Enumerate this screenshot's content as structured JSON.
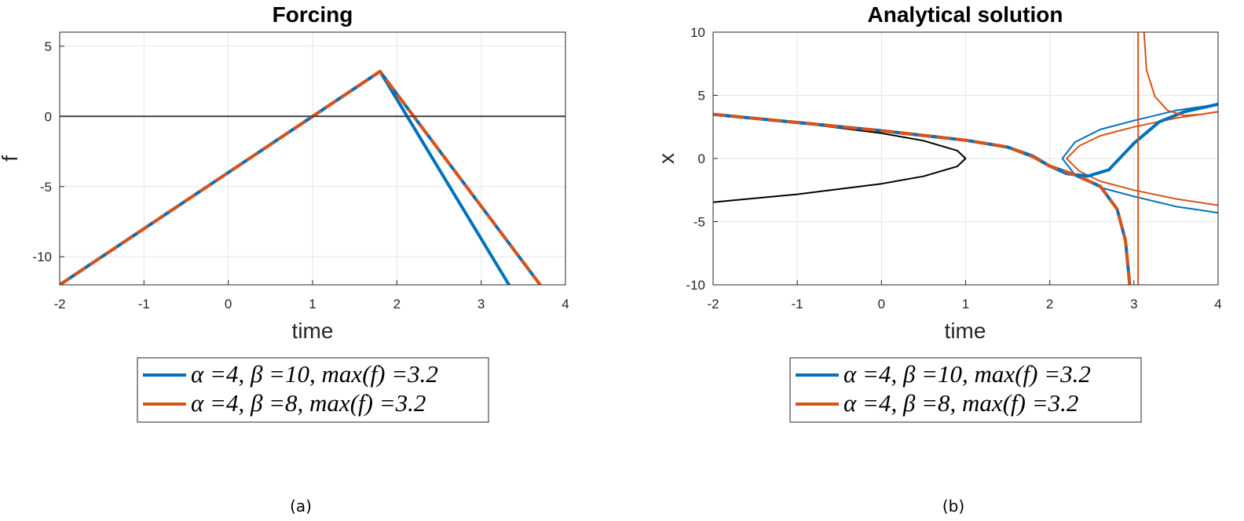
{
  "chart_data": [
    {
      "type": "line",
      "title": "Forcing",
      "xlabel": "time",
      "ylabel": "f",
      "xlim": [
        -2,
        4
      ],
      "ylim": [
        -12,
        6
      ],
      "xticks": [
        "-2",
        "-1",
        "0",
        "1",
        "2",
        "3",
        "4"
      ],
      "yticks": [
        "5",
        "0",
        "-5",
        "-10"
      ],
      "grid": true,
      "caption": "(a)",
      "legend_position": "bottom-outside",
      "legend": [
        "α =4, β =10, max(f) =3.2",
        "α =4, β =8, max(f) =3.2"
      ],
      "series": [
        {
          "name": "α =4, β =10, max(f) =3.2",
          "color": "#0072BD",
          "x": [
            -2,
            1.8,
            3.33
          ],
          "y": [
            -12,
            3.2,
            -12
          ]
        },
        {
          "name": "α =4, β =8, max(f) =3.2",
          "color": "#D95319",
          "dashed_over_blue": true,
          "x": [
            -2,
            1.8,
            3.7
          ],
          "y": [
            -12,
            3.2,
            -12
          ]
        },
        {
          "name": "",
          "color": "#404040",
          "x": [
            -2,
            4
          ],
          "y": [
            0,
            0
          ]
        }
      ]
    },
    {
      "type": "line",
      "title": "Analytical solution",
      "xlabel": "time",
      "ylabel": "x",
      "xlim": [
        -2,
        4
      ],
      "ylim": [
        -10,
        10
      ],
      "xticks": [
        "-2",
        "-1",
        "0",
        "1",
        "2",
        "3",
        "4"
      ],
      "yticks": [
        "10",
        "5",
        "0",
        "-5",
        "-10"
      ],
      "grid": true,
      "caption": "(b)",
      "legend_position": "bottom-outside",
      "legend": [
        "α =4, β =10, max(f) =3.2",
        "α =4, β =8, max(f) =3.2"
      ],
      "series": [
        {
          "name": "",
          "color": "#000000",
          "x": [
            -2,
            -1,
            0,
            0.5,
            0.9,
            1,
            0.9,
            0.5,
            0,
            -1,
            -2
          ],
          "y": [
            3.46,
            2.83,
            2,
            1.41,
            0.63,
            0,
            -0.63,
            -1.41,
            -2,
            -2.83,
            -3.46
          ]
        },
        {
          "name": "",
          "color": "#0072BD",
          "x": [
            4,
            3.5,
            3,
            2.6,
            2.3,
            2.15,
            2.3,
            2.6,
            3,
            3.5,
            4
          ],
          "y": [
            4.3,
            3.8,
            3.0,
            2.3,
            1.3,
            0,
            -1.3,
            -2.3,
            -3.0,
            -3.8,
            -4.3
          ]
        },
        {
          "name": "",
          "color": "#D95319",
          "x": [
            4,
            3.5,
            3,
            2.6,
            2.35,
            2.2,
            2.35,
            2.6,
            3,
            3.5,
            4
          ],
          "y": [
            3.7,
            3.2,
            2.5,
            1.8,
            1.0,
            0,
            -1.0,
            -1.8,
            -2.5,
            -3.2,
            -3.7
          ]
        },
        {
          "name": "α =4, β =10, max(f) =3.2",
          "color": "#0072BD",
          "x": [
            -2,
            -1,
            0,
            1,
            1.5,
            1.8,
            2.0,
            2.2,
            2.45,
            2.7,
            3.0,
            3.3,
            3.6,
            4.0
          ],
          "y": [
            3.5,
            2.85,
            2.2,
            1.45,
            0.9,
            0.2,
            -0.6,
            -1.2,
            -1.4,
            -0.9,
            1.2,
            2.9,
            3.7,
            4.3
          ]
        },
        {
          "name": "α =4, β =8, max(f) =3.2",
          "color": "#D95319",
          "dashed_over_blue": true,
          "x": [
            -2,
            -1,
            0,
            1,
            1.5,
            1.8,
            2.0,
            2.3,
            2.6,
            2.8,
            2.9,
            2.95
          ],
          "y": [
            3.5,
            2.85,
            2.2,
            1.45,
            0.9,
            0.15,
            -0.6,
            -1.3,
            -2.2,
            -4,
            -6.5,
            -10
          ]
        },
        {
          "name": "",
          "color": "#D95319",
          "x": [
            3.05,
            3.05
          ],
          "y": [
            -10,
            10
          ]
        },
        {
          "name": "",
          "color": "#D95319",
          "x": [
            3.12,
            3.15,
            3.25,
            3.4,
            3.6,
            3.8,
            4.0
          ],
          "y": [
            10,
            7,
            4.9,
            3.8,
            3.4,
            3.5,
            3.7
          ]
        }
      ]
    }
  ]
}
